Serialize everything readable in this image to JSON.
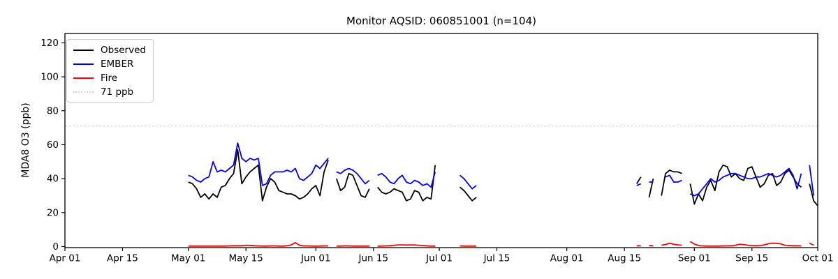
{
  "title": "Monitor AQSID: 060851001 (n=104)",
  "axes": {
    "y_label": "MDA8 O3 (ppb)",
    "y_ticks": [
      0,
      20,
      40,
      60,
      80,
      100,
      120
    ],
    "x_tick_labels": [
      "Apr 01",
      "Apr 15",
      "May 01",
      "May 15",
      "Jun 01",
      "Jun 15",
      "Jul 01",
      "Jul 15",
      "Aug 01",
      "Aug 15",
      "Sep 01",
      "Sep 15",
      "Oct 01"
    ],
    "x_tick_days": [
      0,
      14,
      30,
      44,
      61,
      75,
      91,
      105,
      122,
      136,
      153,
      167,
      183
    ]
  },
  "chart_data": {
    "type": "line",
    "title": "Monitor AQSID: 060851001 (n=104)",
    "xlabel": "",
    "ylabel": "MDA8 O3 (ppb)",
    "ylim": [
      0,
      125.5
    ],
    "x_range_days": 183,
    "x_start_label": "Apr 01",
    "x_end_label": "Oct 01",
    "grid": false,
    "legend_position": "upper left",
    "ref_line": {
      "label": "71 ppb",
      "value": 71,
      "color": "#d3d3d3",
      "style": "dotted"
    },
    "x_unit": "day index from Apr 01",
    "series": [
      {
        "name": "Observed",
        "color": "#000000",
        "segments": [
          {
            "start_day": 30,
            "values": [
              38,
              37,
              34,
              29,
              31,
              28,
              31,
              29,
              35,
              36,
              40,
              43,
              57,
              37,
              41,
              44,
              46,
              48,
              27,
              35,
              40,
              38,
              33,
              32,
              31,
              31,
              30,
              28,
              29,
              31,
              34,
              36,
              30,
              44,
              51
            ]
          },
          {
            "start_day": 66,
            "values": [
              40,
              33,
              35,
              43,
              42,
              36,
              30,
              29,
              34
            ]
          },
          {
            "start_day": 76,
            "values": [
              35,
              32,
              31,
              32,
              34,
              33,
              32,
              27,
              28,
              33,
              32,
              27,
              29,
              28,
              48
            ]
          },
          {
            "start_day": 96,
            "values": [
              35,
              33,
              30,
              27,
              29
            ]
          },
          {
            "start_day": 139,
            "values": [
              37,
              41
            ]
          },
          {
            "start_day": 142,
            "values": [
              29,
              40
            ]
          },
          {
            "start_day": 145,
            "values": [
              30,
              43,
              45,
              44,
              44,
              43
            ]
          },
          {
            "start_day": 152,
            "values": [
              37,
              25,
              31,
              27,
              35,
              39,
              33,
              44,
              48,
              47,
              41,
              43,
              40,
              39,
              46,
              47,
              41,
              35,
              37,
              42,
              43,
              36,
              38,
              43,
              45,
              41,
              37,
              35
            ]
          },
          {
            "start_day": 181,
            "values": [
              37,
              27,
              24
            ]
          }
        ]
      },
      {
        "name": "EMBER",
        "color": "#0000ff",
        "segments": [
          {
            "start_day": 30,
            "values": [
              42,
              41,
              39,
              38,
              40,
              41,
              50,
              44,
              45,
              44,
              46,
              48,
              61,
              52,
              50,
              52,
              51,
              52,
              36,
              37,
              42,
              44,
              44,
              44,
              45,
              44,
              46,
              40,
              39,
              41,
              43,
              48,
              46,
              49,
              52
            ]
          },
          {
            "start_day": 66,
            "values": [
              44,
              43,
              45,
              46,
              45,
              43,
              40,
              37,
              39
            ]
          },
          {
            "start_day": 76,
            "values": [
              42,
              43,
              41,
              38,
              37,
              40,
              42,
              38,
              37,
              39,
              38,
              36,
              37,
              35,
              44
            ]
          },
          {
            "start_day": 96,
            "values": [
              42,
              40,
              37,
              34,
              36
            ]
          },
          {
            "start_day": 139,
            "values": [
              36,
              37
            ]
          },
          {
            "start_day": 142,
            "values": [
              38,
              38
            ]
          },
          {
            "start_day": 146,
            "values": [
              41,
              42,
              38,
              38,
              39
            ]
          },
          {
            "start_day": 152,
            "values": [
              31,
              30,
              31,
              34,
              37,
              40,
              38,
              39,
              41,
              42,
              43,
              43,
              42,
              41,
              40,
              40,
              41,
              41,
              42,
              43,
              42,
              41,
              42,
              44,
              46,
              42,
              34,
              43
            ]
          },
          {
            "start_day": 181,
            "values": [
              48,
              30
            ]
          }
        ]
      },
      {
        "name": "Fire",
        "color": "#ff0000",
        "segments": [
          {
            "start_day": 30,
            "values": [
              0.3,
              0.3,
              0.3,
              0.3,
              0.3,
              0.3,
              0.3,
              0.3,
              0.3,
              0.3,
              0.4,
              0.5,
              0.5,
              0.5,
              0.8,
              0.7,
              0.5,
              0.4,
              0.3,
              0.3,
              0.4,
              0.4,
              0.3,
              0.3,
              0.5,
              1.0,
              2.3,
              0.8,
              0.4,
              0.4,
              0.3,
              0.3,
              0.3,
              0.4,
              0.4
            ]
          },
          {
            "start_day": 66,
            "values": [
              0.3,
              0.3,
              0.4,
              0.4,
              0.3,
              0.3,
              0.3,
              0.3,
              0.3
            ]
          },
          {
            "start_day": 76,
            "values": [
              0.3,
              0.3,
              0.4,
              0.5,
              0.8,
              1.0,
              1.0,
              0.9,
              1.0,
              0.9,
              0.8,
              0.6,
              0.4,
              0.3,
              0.3
            ]
          },
          {
            "start_day": 96,
            "values": [
              0.4,
              0.3,
              0.3,
              0.3,
              0.3
            ]
          },
          {
            "start_day": 139,
            "values": [
              0.5,
              0.5
            ]
          },
          {
            "start_day": 142,
            "values": [
              0.6,
              0.5
            ]
          },
          {
            "start_day": 145,
            "values": [
              0.8,
              1.2,
              2.0,
              1.3,
              1.0,
              0.8
            ]
          },
          {
            "start_day": 152,
            "values": [
              2.9,
              1.5,
              0.6,
              0.4,
              0.3,
              0.3,
              0.3,
              0.3,
              0.4,
              0.4,
              0.5,
              0.8,
              1.3,
              1.2,
              0.8,
              0.6,
              0.5,
              0.6,
              1.0,
              1.7,
              2.0,
              1.9,
              1.6,
              0.8,
              0.6,
              0.5,
              0.5,
              0.4
            ]
          },
          {
            "start_day": 181,
            "values": [
              2.0,
              0.8
            ]
          }
        ]
      }
    ]
  },
  "legend": {
    "items": [
      {
        "label": "Observed",
        "color": "#000000",
        "style": "solid"
      },
      {
        "label": "EMBER",
        "color": "#0000ff",
        "style": "solid"
      },
      {
        "label": "Fire",
        "color": "#ff0000",
        "style": "solid"
      },
      {
        "label": "71 ppb",
        "color": "#d3d3d3",
        "style": "dotted"
      }
    ]
  }
}
